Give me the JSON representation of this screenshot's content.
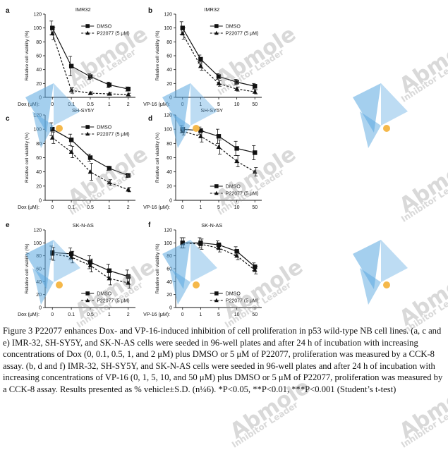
{
  "watermark": {
    "brand": "Abmole",
    "tagline": "Inhibitor Leader",
    "colors": {
      "blue": "#5aa8e0",
      "dot": "#f5b84a"
    }
  },
  "caption": "Figure 3 P22077 enhances Dox- and VP-16-induced inhibition of cell proliferation in p53 wild-type NB cell lines. (a, c and e) IMR-32, SH-SY5Y, and SK-N-AS cells were seeded in 96-well plates and after 24 h of incubation with increasing concentrations of Dox (0, 0.1, 0.5, 1, and 2 μM) plus DMSO or 5 μM of P22077, proliferation was measured by a CCK-8 assay. (b, d and f) IMR-32, SH-SY5Y, and SK-N-AS cells were seeded in 96-well plates and after 24 h of incubation with increasing concentrations of VP-16 (0, 1, 5, 10, and 50 μM) plus DMSO or 5 μM of P22077, proliferation was measured by a CCK-8 assay. Results presented as % vehicle±S.D. (n¼6). *P<0.05, **P<0.01, ***P<0.001 (Student’s t-test)",
  "chart_data": [
    {
      "panel": "a",
      "title": "IMR32",
      "type": "line",
      "xlabel": "Dox (μM):",
      "ylabel": "Relative cell viability (%)",
      "categories": [
        "0",
        "0.1",
        "0.5",
        "1",
        "2"
      ],
      "ylim": [
        0,
        120
      ],
      "yticks": [
        0,
        20,
        40,
        60,
        80,
        100,
        120
      ],
      "legend_position": "top-right",
      "series": [
        {
          "name": "DMSO",
          "values": [
            100,
            45,
            30,
            18,
            12
          ],
          "err": [
            10,
            14,
            4,
            4,
            3
          ],
          "marker": "square",
          "dash": "solid"
        },
        {
          "name": "P22077 (5 μM)",
          "values": [
            92,
            10,
            6,
            5,
            4
          ],
          "err": [
            9,
            4,
            2,
            2,
            2
          ],
          "marker": "triangle",
          "dash": "dashed"
        }
      ]
    },
    {
      "panel": "b",
      "title": "IMR32",
      "type": "line",
      "xlabel": "VP-16 (μM):",
      "ylabel": "Relative cell viability (%)",
      "categories": [
        "0",
        "1",
        "5",
        "10",
        "50"
      ],
      "ylim": [
        0,
        120
      ],
      "yticks": [
        0,
        20,
        40,
        60,
        80,
        100,
        120
      ],
      "legend_position": "top-right",
      "series": [
        {
          "name": "DMSO",
          "values": [
            100,
            55,
            30,
            22,
            16
          ],
          "err": [
            9,
            6,
            4,
            4,
            4
          ],
          "marker": "square",
          "dash": "solid"
        },
        {
          "name": "P22077 (5 μM)",
          "values": [
            92,
            45,
            20,
            12,
            8
          ],
          "err": [
            8,
            6,
            4,
            3,
            3
          ],
          "marker": "triangle",
          "dash": "dashed"
        }
      ]
    },
    {
      "panel": "c",
      "title": "SH-SY5Y",
      "type": "line",
      "xlabel": "Dox (μM):",
      "ylabel": "Relative cell viability (%)",
      "categories": [
        "0",
        "0.1",
        "0.5",
        "1",
        "2"
      ],
      "ylim": [
        0,
        120
      ],
      "yticks": [
        0,
        20,
        40,
        60,
        80,
        100,
        120
      ],
      "legend_position": "top-right",
      "series": [
        {
          "name": "DMSO",
          "values": [
            100,
            85,
            60,
            45,
            35
          ],
          "err": [
            9,
            8,
            5,
            3,
            3
          ],
          "marker": "square",
          "dash": "solid"
        },
        {
          "name": "P22077 (5 μM)",
          "values": [
            88,
            68,
            40,
            25,
            15
          ],
          "err": [
            8,
            8,
            12,
            4,
            3
          ],
          "marker": "triangle",
          "dash": "dashed"
        }
      ]
    },
    {
      "panel": "d",
      "title": "SH-SY5Y",
      "type": "line",
      "xlabel": "VP-16 (μM):",
      "ylabel": "Relative cell viability (%)",
      "categories": [
        "0",
        "1",
        "5",
        "10",
        "50"
      ],
      "ylim": [
        0,
        120
      ],
      "yticks": [
        0,
        20,
        40,
        60,
        80,
        100,
        120
      ],
      "legend_position": "bottom-right",
      "series": [
        {
          "name": "DMSO",
          "values": [
            100,
            98,
            90,
            73,
            67
          ],
          "err": [
            5,
            5,
            10,
            10,
            10
          ],
          "marker": "square",
          "dash": "solid"
        },
        {
          "name": "P22077 (5 μM)",
          "values": [
            97,
            90,
            75,
            55,
            40
          ],
          "err": [
            5,
            8,
            10,
            8,
            6
          ],
          "marker": "triangle",
          "dash": "dashed"
        }
      ]
    },
    {
      "panel": "e",
      "title": "SK-N-AS",
      "type": "line",
      "xlabel": "Dox (μM):",
      "ylabel": "Relative cell viability (%)",
      "categories": [
        "0",
        "0.1",
        "0.5",
        "1",
        "2"
      ],
      "ylim": [
        0,
        120
      ],
      "yticks": [
        0,
        20,
        40,
        60,
        80,
        100,
        120
      ],
      "legend_position": "bottom-right",
      "series": [
        {
          "name": "DMSO",
          "values": [
            85,
            83,
            70,
            57,
            48
          ],
          "err": [
            10,
            9,
            10,
            10,
            10
          ],
          "marker": "square",
          "dash": "solid"
        },
        {
          "name": "P22077 (5 μM)",
          "values": [
            83,
            78,
            65,
            45,
            38
          ],
          "err": [
            10,
            9,
            10,
            10,
            8
          ],
          "marker": "triangle",
          "dash": "dashed"
        }
      ]
    },
    {
      "panel": "f",
      "title": "SK-N-AS",
      "type": "line",
      "xlabel": "VP-16 (μM):",
      "ylabel": "Relative cell viability (%)",
      "categories": [
        "0",
        "1",
        "5",
        "10",
        "50"
      ],
      "ylim": [
        0,
        120
      ],
      "yticks": [
        0,
        20,
        40,
        60,
        80,
        100,
        120
      ],
      "legend_position": "bottom-right",
      "series": [
        {
          "name": "DMSO",
          "values": [
            100,
            100,
            97,
            87,
            63
          ],
          "err": [
            8,
            8,
            6,
            7,
            6
          ],
          "marker": "square",
          "dash": "solid"
        },
        {
          "name": "P22077 (5 μM)",
          "values": [
            100,
            98,
            92,
            80,
            58
          ],
          "err": [
            8,
            8,
            6,
            6,
            6
          ],
          "marker": "triangle",
          "dash": "dashed"
        }
      ]
    }
  ]
}
